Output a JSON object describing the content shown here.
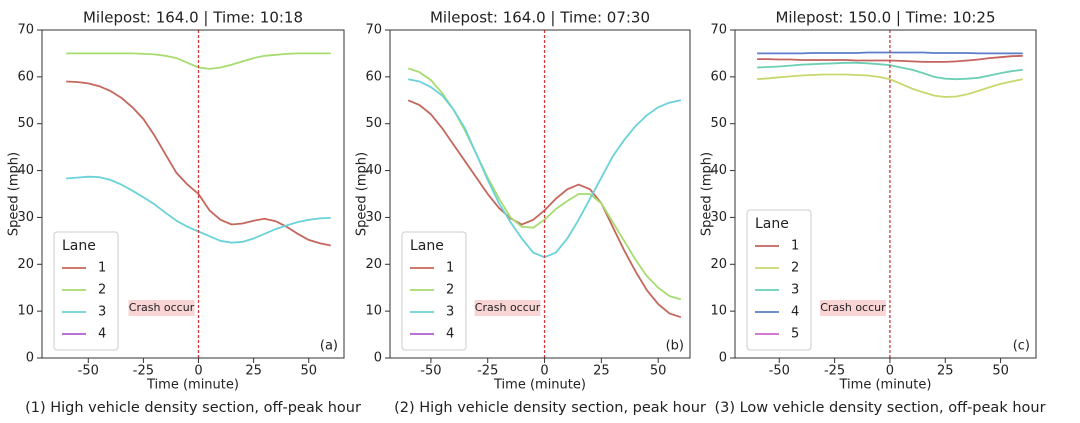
{
  "chart_data": [
    {
      "type": "line",
      "title": "Milepost: 164.0 | Time: 10:18",
      "xlabel": "Time (minute)",
      "ylabel": "Speed (mph)",
      "xlim": [
        -71,
        66
      ],
      "ylim": [
        0,
        70
      ],
      "xticks": [
        -50,
        -25,
        0,
        25,
        50
      ],
      "yticks": [
        0,
        10,
        20,
        30,
        40,
        50,
        60,
        70
      ],
      "x": [
        -60,
        -55,
        -50,
        -45,
        -40,
        -35,
        -30,
        -25,
        -20,
        -15,
        -10,
        -5,
        0,
        5,
        10,
        15,
        20,
        25,
        30,
        35,
        40,
        45,
        50,
        55,
        60
      ],
      "legend_title": "Lane",
      "legend": "lower left",
      "vline": 0,
      "annotations": [
        "Crash occur",
        "(a)"
      ],
      "caption": "(1)  High vehicle density section, off-peak hour",
      "series": [
        {
          "name": "1",
          "color": "#c4675c",
          "values": [
            59,
            58.9,
            58.6,
            58,
            57,
            55.5,
            53.5,
            51,
            47.5,
            43.5,
            39.5,
            37,
            35,
            31.5,
            29.5,
            28.5,
            28.7,
            29.3,
            29.7,
            29.2,
            28,
            26.5,
            25.2,
            24.5,
            24
          ]
        },
        {
          "name": "2",
          "color": "#a6dc70",
          "values": [
            65,
            65,
            65,
            65,
            65,
            65,
            65,
            64.9,
            64.8,
            64.5,
            64,
            63,
            62,
            61.7,
            62,
            62.6,
            63.3,
            64,
            64.5,
            64.7,
            64.9,
            65,
            65,
            65,
            65
          ]
        },
        {
          "name": "3",
          "color": "#6ad2d8",
          "values": [
            38.3,
            38.5,
            38.7,
            38.6,
            38,
            37,
            35.7,
            34.3,
            32.8,
            31,
            29.3,
            28,
            27,
            26,
            25,
            24.6,
            24.8,
            25.5,
            26.5,
            27.5,
            28.3,
            29,
            29.5,
            29.8,
            29.9
          ]
        },
        {
          "name": "4",
          "color": "#b05cc8",
          "values": [
            null,
            null,
            null,
            null,
            null,
            null,
            null,
            null,
            null,
            null,
            null,
            null,
            null,
            null,
            null,
            null,
            null,
            null,
            null,
            null,
            null,
            null,
            null,
            null,
            null
          ]
        }
      ]
    },
    {
      "type": "line",
      "title": "Milepost: 164.0 | Time: 07:30",
      "xlabel": "Time (minute)",
      "ylabel": "Speed (mph)",
      "xlim": [
        -68,
        64
      ],
      "ylim": [
        0,
        70
      ],
      "xticks": [
        -50,
        -25,
        0,
        25,
        50
      ],
      "yticks": [
        0,
        10,
        20,
        30,
        40,
        50,
        60,
        70
      ],
      "x": [
        -60,
        -55,
        -50,
        -45,
        -40,
        -35,
        -30,
        -25,
        -20,
        -15,
        -10,
        -5,
        0,
        5,
        10,
        15,
        20,
        25,
        30,
        35,
        40,
        45,
        50,
        55,
        60
      ],
      "legend_title": "Lane",
      "legend": "lower left",
      "vline": 0,
      "annotations": [
        "Crash occur",
        "(b)"
      ],
      "caption": "(2)  High vehicle density section, peak hour",
      "series": [
        {
          "name": "1",
          "color": "#c4675c",
          "values": [
            55,
            54,
            52,
            49,
            45.5,
            42,
            38.5,
            35,
            32,
            29.8,
            28.5,
            29.5,
            31.5,
            34,
            36,
            37,
            36,
            33,
            28,
            23,
            18.5,
            14.5,
            11.5,
            9.5,
            8.7
          ]
        },
        {
          "name": "2",
          "color": "#a6dc70",
          "values": [
            61.8,
            61,
            59.3,
            56.5,
            53,
            48.5,
            43.5,
            38.5,
            34,
            30,
            28,
            27.8,
            29.5,
            31.8,
            33.5,
            35,
            35,
            33,
            29,
            25,
            21,
            17.5,
            15,
            13.2,
            12.5
          ]
        },
        {
          "name": "3",
          "color": "#6ad2d8",
          "values": [
            59.5,
            59,
            57.8,
            56,
            53,
            49,
            43.5,
            38,
            33,
            29,
            25.5,
            22.5,
            21.5,
            22.5,
            25.5,
            29.5,
            34,
            38.5,
            43,
            46.5,
            49.5,
            51.8,
            53.5,
            54.5,
            55
          ]
        },
        {
          "name": "4",
          "color": "#b05cc8",
          "values": [
            null,
            null,
            null,
            null,
            null,
            null,
            null,
            null,
            null,
            null,
            null,
            null,
            null,
            null,
            null,
            null,
            null,
            null,
            null,
            null,
            null,
            null,
            null,
            null,
            null
          ]
        }
      ]
    },
    {
      "type": "line",
      "title": "Milepost: 150.0 | Time: 10:25",
      "xlabel": "Time (minute)",
      "ylabel": "Speed (mph)",
      "xlim": [
        -70,
        66
      ],
      "ylim": [
        0,
        70
      ],
      "xticks": [
        -50,
        -25,
        0,
        25,
        50
      ],
      "yticks": [
        0,
        10,
        20,
        30,
        40,
        50,
        60,
        70
      ],
      "x": [
        -60,
        -55,
        -50,
        -45,
        -40,
        -35,
        -30,
        -25,
        -20,
        -15,
        -10,
        -5,
        0,
        5,
        10,
        15,
        20,
        25,
        30,
        35,
        40,
        45,
        50,
        55,
        60
      ],
      "legend_title": "Lane",
      "legend": "lower left",
      "vline": 0,
      "annotations": [
        "Crash occur",
        "(c)"
      ],
      "caption": "(3)  Low vehicle density section, off-peak hour",
      "series": [
        {
          "name": "1",
          "color": "#c4625e",
          "values": [
            63.8,
            63.8,
            63.7,
            63.7,
            63.6,
            63.6,
            63.6,
            63.6,
            63.6,
            63.5,
            63.5,
            63.5,
            63.5,
            63.4,
            63.3,
            63.2,
            63.2,
            63.2,
            63.3,
            63.5,
            63.7,
            64,
            64.2,
            64.4,
            64.5
          ]
        },
        {
          "name": "2",
          "color": "#c8d86c",
          "values": [
            59.5,
            59.7,
            59.9,
            60.1,
            60.3,
            60.4,
            60.5,
            60.5,
            60.5,
            60.4,
            60.3,
            60,
            59.5,
            58.5,
            57.5,
            56.7,
            56,
            55.7,
            55.8,
            56.3,
            57,
            57.8,
            58.5,
            59,
            59.5
          ]
        },
        {
          "name": "3",
          "color": "#6ccfb4",
          "values": [
            62,
            62.1,
            62.2,
            62.4,
            62.6,
            62.7,
            62.8,
            62.9,
            63,
            63,
            62.9,
            62.7,
            62.5,
            62,
            61.5,
            60.8,
            60,
            59.6,
            59.5,
            59.6,
            59.8,
            60.3,
            60.8,
            61.2,
            61.5
          ]
        },
        {
          "name": "4",
          "color": "#5a7ec8",
          "values": [
            65,
            65,
            65,
            65,
            65,
            65.1,
            65.1,
            65.1,
            65.1,
            65.1,
            65.2,
            65.2,
            65.2,
            65.2,
            65.2,
            65.2,
            65.1,
            65.1,
            65.1,
            65.1,
            65,
            65,
            65,
            65,
            65
          ]
        },
        {
          "name": "5",
          "color": "#cc66cc",
          "values": [
            null,
            null,
            null,
            null,
            null,
            null,
            null,
            null,
            null,
            null,
            null,
            null,
            null,
            null,
            null,
            null,
            null,
            null,
            null,
            null,
            null,
            null,
            null,
            null,
            null
          ]
        }
      ]
    }
  ]
}
